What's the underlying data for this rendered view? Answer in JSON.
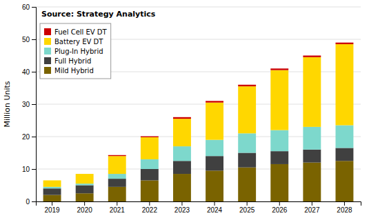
{
  "chart_data": {
    "type": "bar",
    "stacked": true,
    "categories": [
      "2019",
      "2020",
      "2021",
      "2022",
      "2023",
      "2024",
      "2025",
      "2026",
      "2027",
      "2028"
    ],
    "series": [
      {
        "name": "Mild Hybrid",
        "color": "#7a6300",
        "values": [
          2.0,
          2.5,
          4.5,
          6.5,
          8.5,
          9.5,
          10.5,
          11.5,
          12.0,
          12.5
        ]
      },
      {
        "name": "Full Hybrid",
        "color": "#404040",
        "values": [
          2.0,
          2.5,
          2.5,
          3.5,
          4.0,
          4.5,
          4.5,
          4.0,
          4.0,
          4.0
        ]
      },
      {
        "name": "Plug-In Hybrid",
        "color": "#7dd8cc",
        "values": [
          0.5,
          0.5,
          1.5,
          3.0,
          4.5,
          5.0,
          6.0,
          6.5,
          7.0,
          7.0
        ]
      },
      {
        "name": "Battery EV DT",
        "color": "#ffd700",
        "values": [
          2.0,
          3.0,
          5.5,
          6.8,
          8.5,
          11.5,
          14.5,
          18.5,
          21.5,
          25.0
        ]
      },
      {
        "name": "Fuel Cell EV DT",
        "color": "#cc0000",
        "values": [
          0.0,
          0.0,
          0.3,
          0.3,
          0.5,
          0.5,
          0.5,
          0.5,
          0.5,
          0.5
        ]
      }
    ],
    "y_label": "Million Units",
    "annotations": [
      "Source: Strategy Analytics"
    ],
    "ylim": [
      0,
      60
    ],
    "yticks": [
      0,
      10,
      20,
      30,
      40,
      50,
      60
    ],
    "grid": true,
    "legend": "upper left"
  }
}
